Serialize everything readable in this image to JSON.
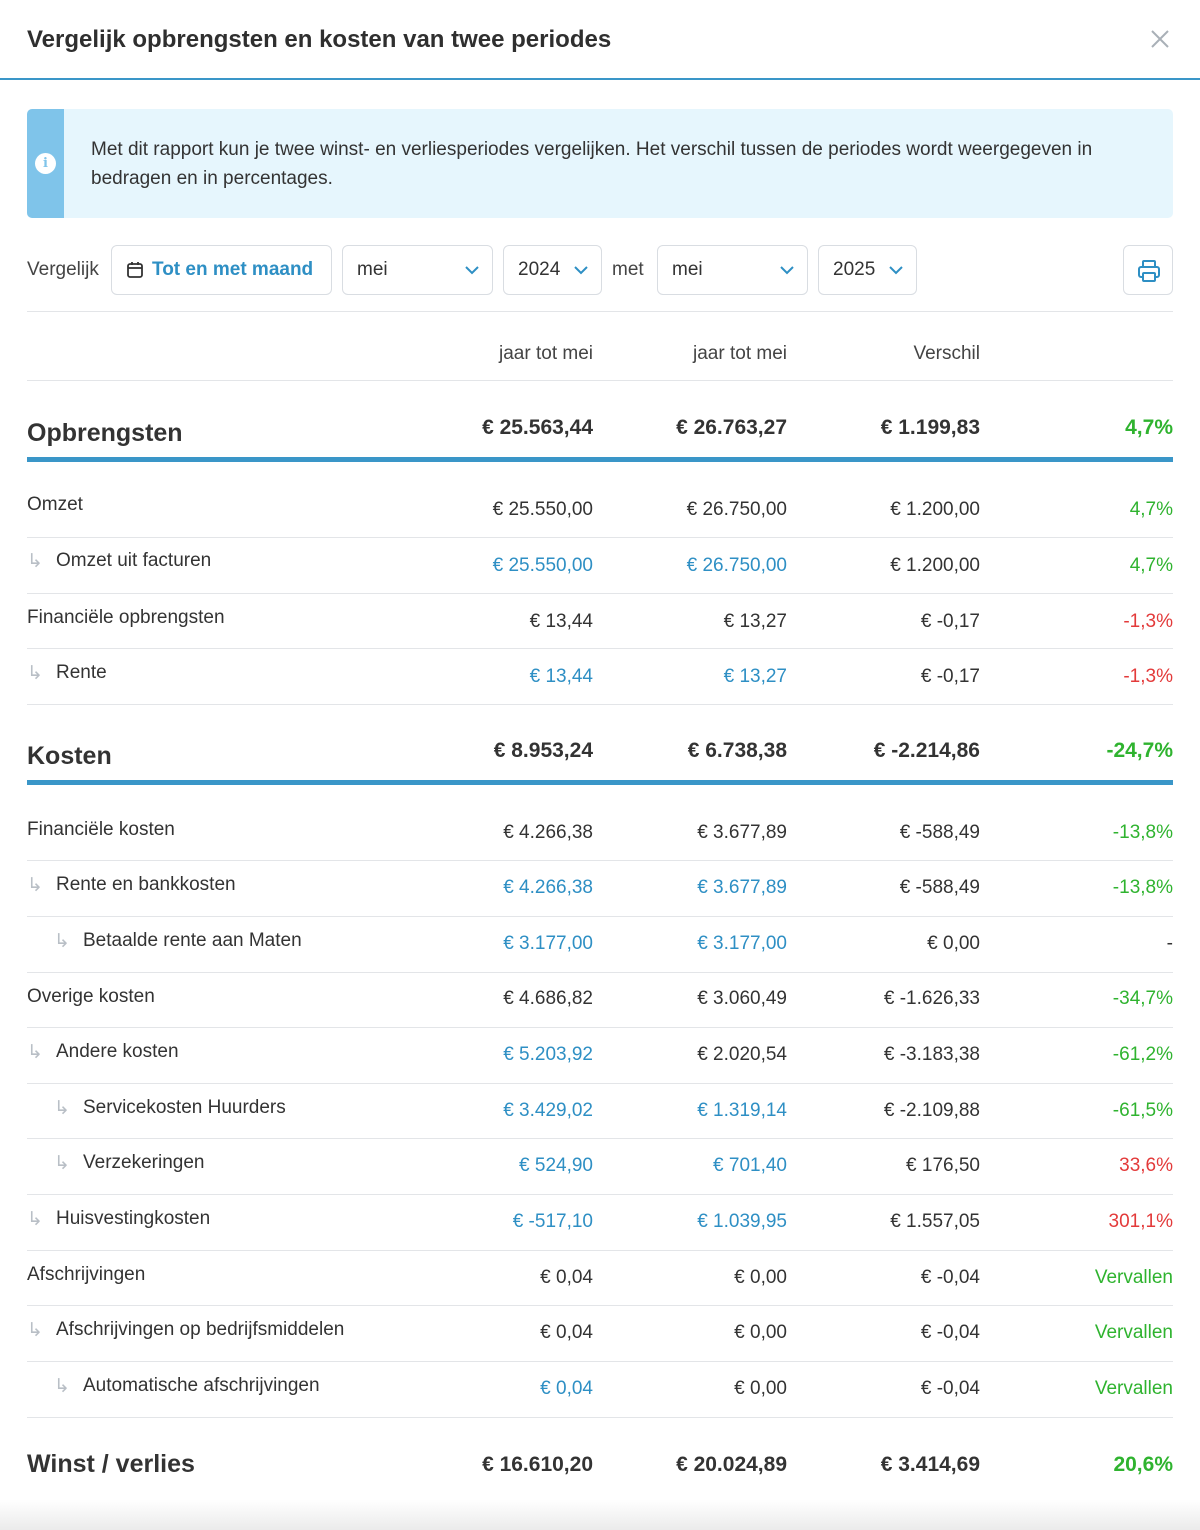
{
  "header": {
    "title": "Vergelijk opbrengsten en kosten van twee periodes"
  },
  "info": {
    "text": "Met dit rapport kun je twee winst- en verliesperiodes vergelijken. Het verschil tussen de periodes wordt weergegeven in bedragen en in percentages."
  },
  "controls": {
    "compare_label": "Vergelijk",
    "period_type": "Tot en met maand",
    "month_a": "mei",
    "year_a": "2024",
    "with_label": "met",
    "month_b": "mei",
    "year_b": "2025"
  },
  "columns": {
    "col1": "jaar tot mei",
    "col2": "jaar tot mei",
    "col3": "Verschil"
  },
  "revenue": {
    "title": "Opbrengsten",
    "a": "€ 25.563,44",
    "b": "€ 26.763,27",
    "diff": "€ 1.199,83",
    "pct": "4,7%",
    "rows": [
      {
        "label": "Omzet",
        "a": "€ 25.550,00",
        "b": "€ 26.750,00",
        "diff": "€ 1.200,00",
        "pct": "4,7%"
      },
      {
        "label": "Omzet uit facturen",
        "a": "€ 25.550,00",
        "b": "€ 26.750,00",
        "diff": "€ 1.200,00",
        "pct": "4,7%"
      },
      {
        "label": "Financiële opbrengsten",
        "a": "€ 13,44",
        "b": "€ 13,27",
        "diff": "€ -0,17",
        "pct": "-1,3%"
      },
      {
        "label": "Rente",
        "a": "€ 13,44",
        "b": "€ 13,27",
        "diff": "€ -0,17",
        "pct": "-1,3%"
      }
    ]
  },
  "costs": {
    "title": "Kosten",
    "a": "€ 8.953,24",
    "b": "€ 6.738,38",
    "diff": "€ -2.214,86",
    "pct": "-24,7%",
    "rows": [
      {
        "label": "Financiële kosten",
        "a": "€ 4.266,38",
        "b": "€ 3.677,89",
        "diff": "€ -588,49",
        "pct": "-13,8%"
      },
      {
        "label": "Rente en bankkosten",
        "a": "€ 4.266,38",
        "b": "€ 3.677,89",
        "diff": "€ -588,49",
        "pct": "-13,8%"
      },
      {
        "label": "Betaalde rente aan Maten",
        "a": "€ 3.177,00",
        "b": "€ 3.177,00",
        "diff": "€ 0,00",
        "pct": "-"
      },
      {
        "label": "Overige kosten",
        "a": "€ 4.686,82",
        "b": "€ 3.060,49",
        "diff": "€ -1.626,33",
        "pct": "-34,7%"
      },
      {
        "label": "Andere kosten",
        "a": "€ 5.203,92",
        "b": "€ 2.020,54",
        "diff": "€ -3.183,38",
        "pct": "-61,2%"
      },
      {
        "label": "Servicekosten Huurders",
        "a": "€ 3.429,02",
        "b": "€ 1.319,14",
        "diff": "€ -2.109,88",
        "pct": "-61,5%"
      },
      {
        "label": "Verzekeringen",
        "a": "€ 524,90",
        "b": "€ 701,40",
        "diff": "€ 176,50",
        "pct": "33,6%"
      },
      {
        "label": "Huisvestingkosten",
        "a": "€ -517,10",
        "b": "€ 1.039,95",
        "diff": "€ 1.557,05",
        "pct": "301,1%"
      },
      {
        "label": "Afschrijvingen",
        "a": "€ 0,04",
        "b": "€ 0,00",
        "diff": "€ -0,04",
        "pct": "Vervallen"
      },
      {
        "label": "Afschrijvingen op bedrijfsmiddelen",
        "a": "€ 0,04",
        "b": "€ 0,00",
        "diff": "€ -0,04",
        "pct": "Vervallen"
      },
      {
        "label": "Automatische afschrijvingen",
        "a": "€ 0,04",
        "b": "€ 0,00",
        "diff": "€ -0,04",
        "pct": "Vervallen"
      }
    ]
  },
  "result": {
    "title": "Winst / verlies",
    "a": "€ 16.610,20",
    "b": "€ 20.024,89",
    "diff": "€ 3.414,69",
    "pct": "20,6%"
  },
  "colors": {
    "accent": "#3a96c8",
    "link": "#2e8fc4",
    "positive": "#2fb32f",
    "negative": "#e33a3a",
    "info_bg": "#e6f6fd",
    "info_stripe": "#7fc4ea"
  },
  "icons": {
    "close": "close-icon",
    "info": "info-icon",
    "calendar": "calendar-icon",
    "chevron": "chevron-down-icon",
    "print": "printer-icon",
    "indent": "indent-arrow-icon"
  }
}
